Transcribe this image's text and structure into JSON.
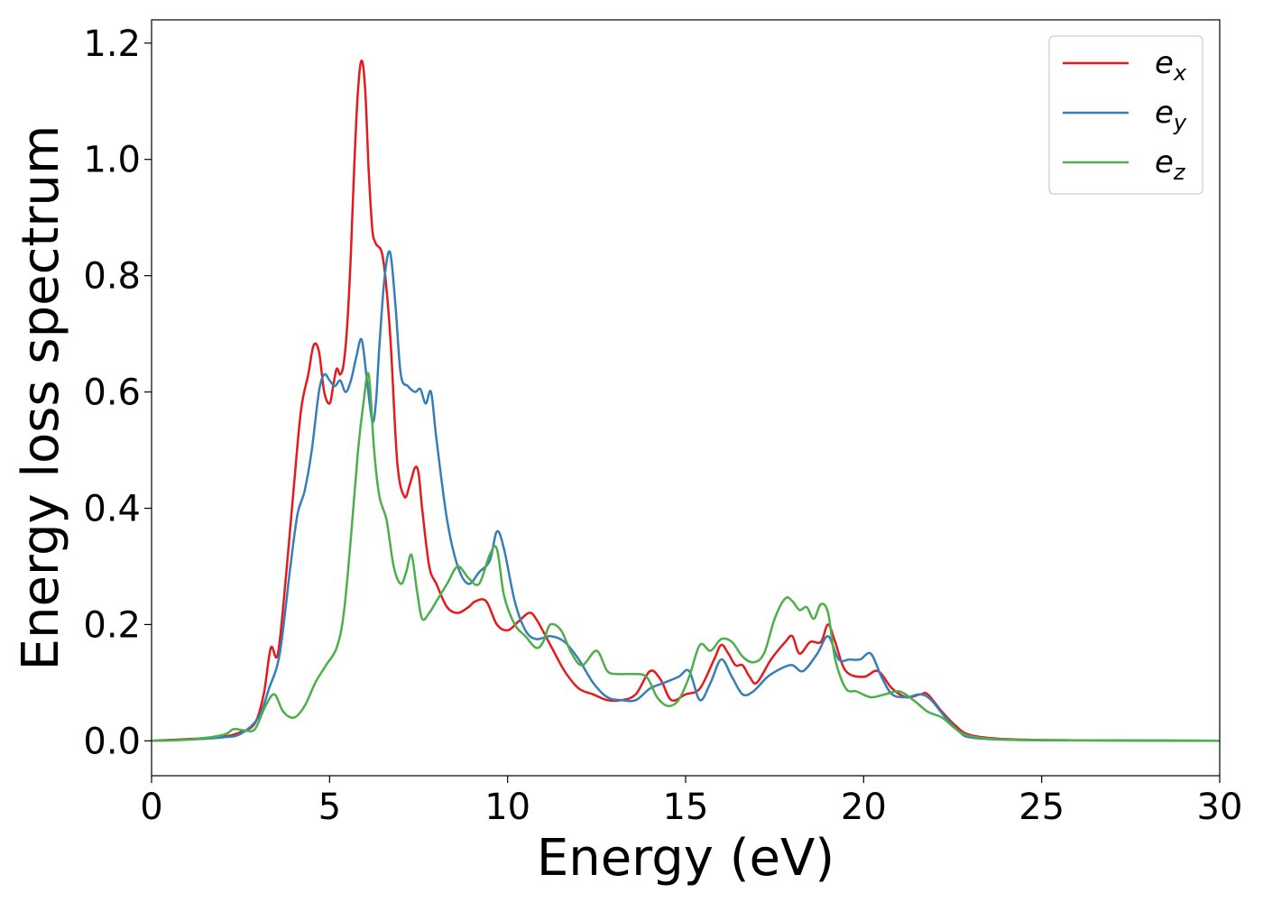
{
  "chart_data": {
    "type": "line",
    "xlabel": "Energy (eV)",
    "ylabel": "Energy loss spectrum",
    "xlim": [
      0,
      30
    ],
    "ylim": [
      -0.06,
      1.24
    ],
    "xticks": [
      0,
      5,
      10,
      15,
      20,
      25,
      30
    ],
    "yticks": [
      0.0,
      0.2,
      0.4,
      0.6,
      0.8,
      1.0,
      1.2
    ],
    "xtick_labels": [
      "0",
      "5",
      "10",
      "15",
      "20",
      "25",
      "30"
    ],
    "ytick_labels": [
      "0.0",
      "0.2",
      "0.4",
      "0.6",
      "0.8",
      "1.0",
      "1.2"
    ],
    "grid": false,
    "legend_position": "top-right",
    "series": [
      {
        "name": "e",
        "subscript": "x",
        "color": "#e41a1c",
        "x": [
          0,
          1,
          2,
          2.5,
          2.9,
          3.15,
          3.35,
          3.55,
          3.8,
          4.0,
          4.2,
          4.4,
          4.55,
          4.7,
          4.85,
          5.0,
          5.1,
          5.2,
          5.3,
          5.4,
          5.5,
          5.6,
          5.7,
          5.8,
          5.9,
          6.0,
          6.1,
          6.2,
          6.3,
          6.5,
          6.7,
          6.9,
          7.1,
          7.25,
          7.4,
          7.5,
          7.6,
          7.8,
          8.0,
          8.3,
          8.6,
          8.9,
          9.1,
          9.4,
          9.7,
          10.0,
          10.3,
          10.6,
          10.8,
          11.2,
          11.6,
          12.0,
          12.4,
          12.8,
          13.2,
          13.6,
          14.0,
          14.3,
          14.6,
          15.0,
          15.4,
          15.8,
          16.0,
          16.2,
          16.4,
          16.6,
          16.8,
          17.0,
          17.4,
          17.8,
          18.0,
          18.2,
          18.5,
          18.8,
          19.0,
          19.2,
          19.5,
          20.0,
          20.4,
          20.8,
          21.2,
          21.6,
          21.8,
          22.2,
          22.6,
          23.0,
          24,
          26,
          30
        ],
        "y": [
          0.0,
          0.003,
          0.007,
          0.015,
          0.03,
          0.08,
          0.16,
          0.15,
          0.3,
          0.44,
          0.57,
          0.63,
          0.68,
          0.67,
          0.6,
          0.58,
          0.61,
          0.64,
          0.63,
          0.65,
          0.72,
          0.84,
          1.0,
          1.12,
          1.17,
          1.12,
          0.98,
          0.88,
          0.855,
          0.83,
          0.7,
          0.48,
          0.42,
          0.44,
          0.47,
          0.46,
          0.4,
          0.3,
          0.27,
          0.23,
          0.22,
          0.23,
          0.24,
          0.24,
          0.2,
          0.19,
          0.205,
          0.22,
          0.21,
          0.165,
          0.12,
          0.09,
          0.08,
          0.07,
          0.07,
          0.08,
          0.12,
          0.105,
          0.07,
          0.08,
          0.09,
          0.14,
          0.165,
          0.15,
          0.13,
          0.13,
          0.11,
          0.1,
          0.14,
          0.17,
          0.18,
          0.15,
          0.17,
          0.17,
          0.2,
          0.17,
          0.12,
          0.11,
          0.12,
          0.09,
          0.075,
          0.08,
          0.08,
          0.05,
          0.025,
          0.01,
          0.003,
          0.001,
          0.0
        ]
      },
      {
        "name": "e",
        "subscript": "y",
        "color": "#377eb8",
        "x": [
          0,
          1,
          2,
          2.5,
          3.0,
          3.3,
          3.6,
          3.9,
          4.1,
          4.3,
          4.5,
          4.7,
          4.85,
          5.0,
          5.15,
          5.3,
          5.45,
          5.6,
          5.75,
          5.9,
          6.05,
          6.2,
          6.3,
          6.4,
          6.55,
          6.7,
          6.85,
          7.0,
          7.2,
          7.4,
          7.55,
          7.7,
          7.85,
          8.0,
          8.3,
          8.6,
          8.9,
          9.2,
          9.5,
          9.7,
          9.9,
          10.2,
          10.5,
          10.8,
          11.2,
          11.6,
          12.0,
          12.4,
          12.8,
          13.2,
          13.6,
          14.0,
          14.4,
          14.8,
          15.1,
          15.4,
          15.7,
          16.0,
          16.3,
          16.6,
          16.9,
          17.3,
          17.7,
          18.0,
          18.3,
          18.7,
          19.0,
          19.3,
          19.6,
          19.9,
          20.2,
          20.5,
          20.8,
          21.2,
          21.6,
          21.9,
          22.3,
          22.7,
          23.0,
          24,
          26,
          30
        ],
        "y": [
          0.0,
          0.002,
          0.006,
          0.012,
          0.04,
          0.09,
          0.15,
          0.3,
          0.39,
          0.43,
          0.5,
          0.6,
          0.63,
          0.62,
          0.61,
          0.62,
          0.6,
          0.62,
          0.66,
          0.69,
          0.62,
          0.55,
          0.58,
          0.68,
          0.8,
          0.84,
          0.75,
          0.63,
          0.61,
          0.6,
          0.605,
          0.58,
          0.6,
          0.52,
          0.38,
          0.3,
          0.27,
          0.29,
          0.31,
          0.36,
          0.33,
          0.24,
          0.19,
          0.175,
          0.18,
          0.17,
          0.14,
          0.1,
          0.075,
          0.07,
          0.07,
          0.09,
          0.1,
          0.11,
          0.12,
          0.07,
          0.1,
          0.14,
          0.11,
          0.08,
          0.085,
          0.11,
          0.125,
          0.13,
          0.12,
          0.15,
          0.18,
          0.14,
          0.14,
          0.14,
          0.15,
          0.11,
          0.08,
          0.075,
          0.08,
          0.07,
          0.04,
          0.015,
          0.006,
          0.002,
          0.001,
          0.0
        ]
      },
      {
        "name": "e",
        "subscript": "z",
        "color": "#4daf4a",
        "x": [
          0,
          1,
          2,
          2.3,
          2.6,
          2.9,
          3.2,
          3.45,
          3.7,
          4.0,
          4.3,
          4.6,
          4.9,
          5.2,
          5.4,
          5.6,
          5.8,
          5.95,
          6.1,
          6.25,
          6.4,
          6.6,
          6.8,
          7.0,
          7.15,
          7.3,
          7.45,
          7.6,
          7.8,
          8.0,
          8.3,
          8.6,
          8.9,
          9.2,
          9.5,
          9.7,
          9.9,
          10.2,
          10.5,
          10.8,
          11.0,
          11.2,
          11.5,
          11.8,
          12.1,
          12.5,
          12.8,
          13.1,
          13.5,
          13.9,
          14.2,
          14.5,
          14.8,
          15.1,
          15.4,
          15.7,
          16.0,
          16.3,
          16.6,
          16.9,
          17.2,
          17.5,
          17.8,
          18.0,
          18.2,
          18.4,
          18.6,
          18.8,
          19.0,
          19.2,
          19.5,
          19.8,
          20.2,
          20.6,
          21.0,
          21.4,
          21.8,
          22.2,
          22.6,
          23.0,
          24,
          26,
          30
        ],
        "y": [
          0.0,
          0.002,
          0.01,
          0.02,
          0.018,
          0.02,
          0.06,
          0.08,
          0.05,
          0.04,
          0.06,
          0.1,
          0.13,
          0.16,
          0.22,
          0.35,
          0.5,
          0.58,
          0.63,
          0.5,
          0.42,
          0.38,
          0.3,
          0.27,
          0.29,
          0.32,
          0.26,
          0.21,
          0.22,
          0.24,
          0.27,
          0.3,
          0.28,
          0.27,
          0.32,
          0.33,
          0.25,
          0.2,
          0.18,
          0.16,
          0.17,
          0.2,
          0.19,
          0.15,
          0.13,
          0.155,
          0.12,
          0.115,
          0.115,
          0.11,
          0.075,
          0.06,
          0.07,
          0.11,
          0.165,
          0.155,
          0.175,
          0.17,
          0.145,
          0.135,
          0.15,
          0.21,
          0.245,
          0.24,
          0.225,
          0.23,
          0.21,
          0.235,
          0.22,
          0.14,
          0.09,
          0.085,
          0.075,
          0.08,
          0.085,
          0.07,
          0.05,
          0.04,
          0.02,
          0.008,
          0.002,
          0.001,
          0.0
        ]
      }
    ]
  }
}
